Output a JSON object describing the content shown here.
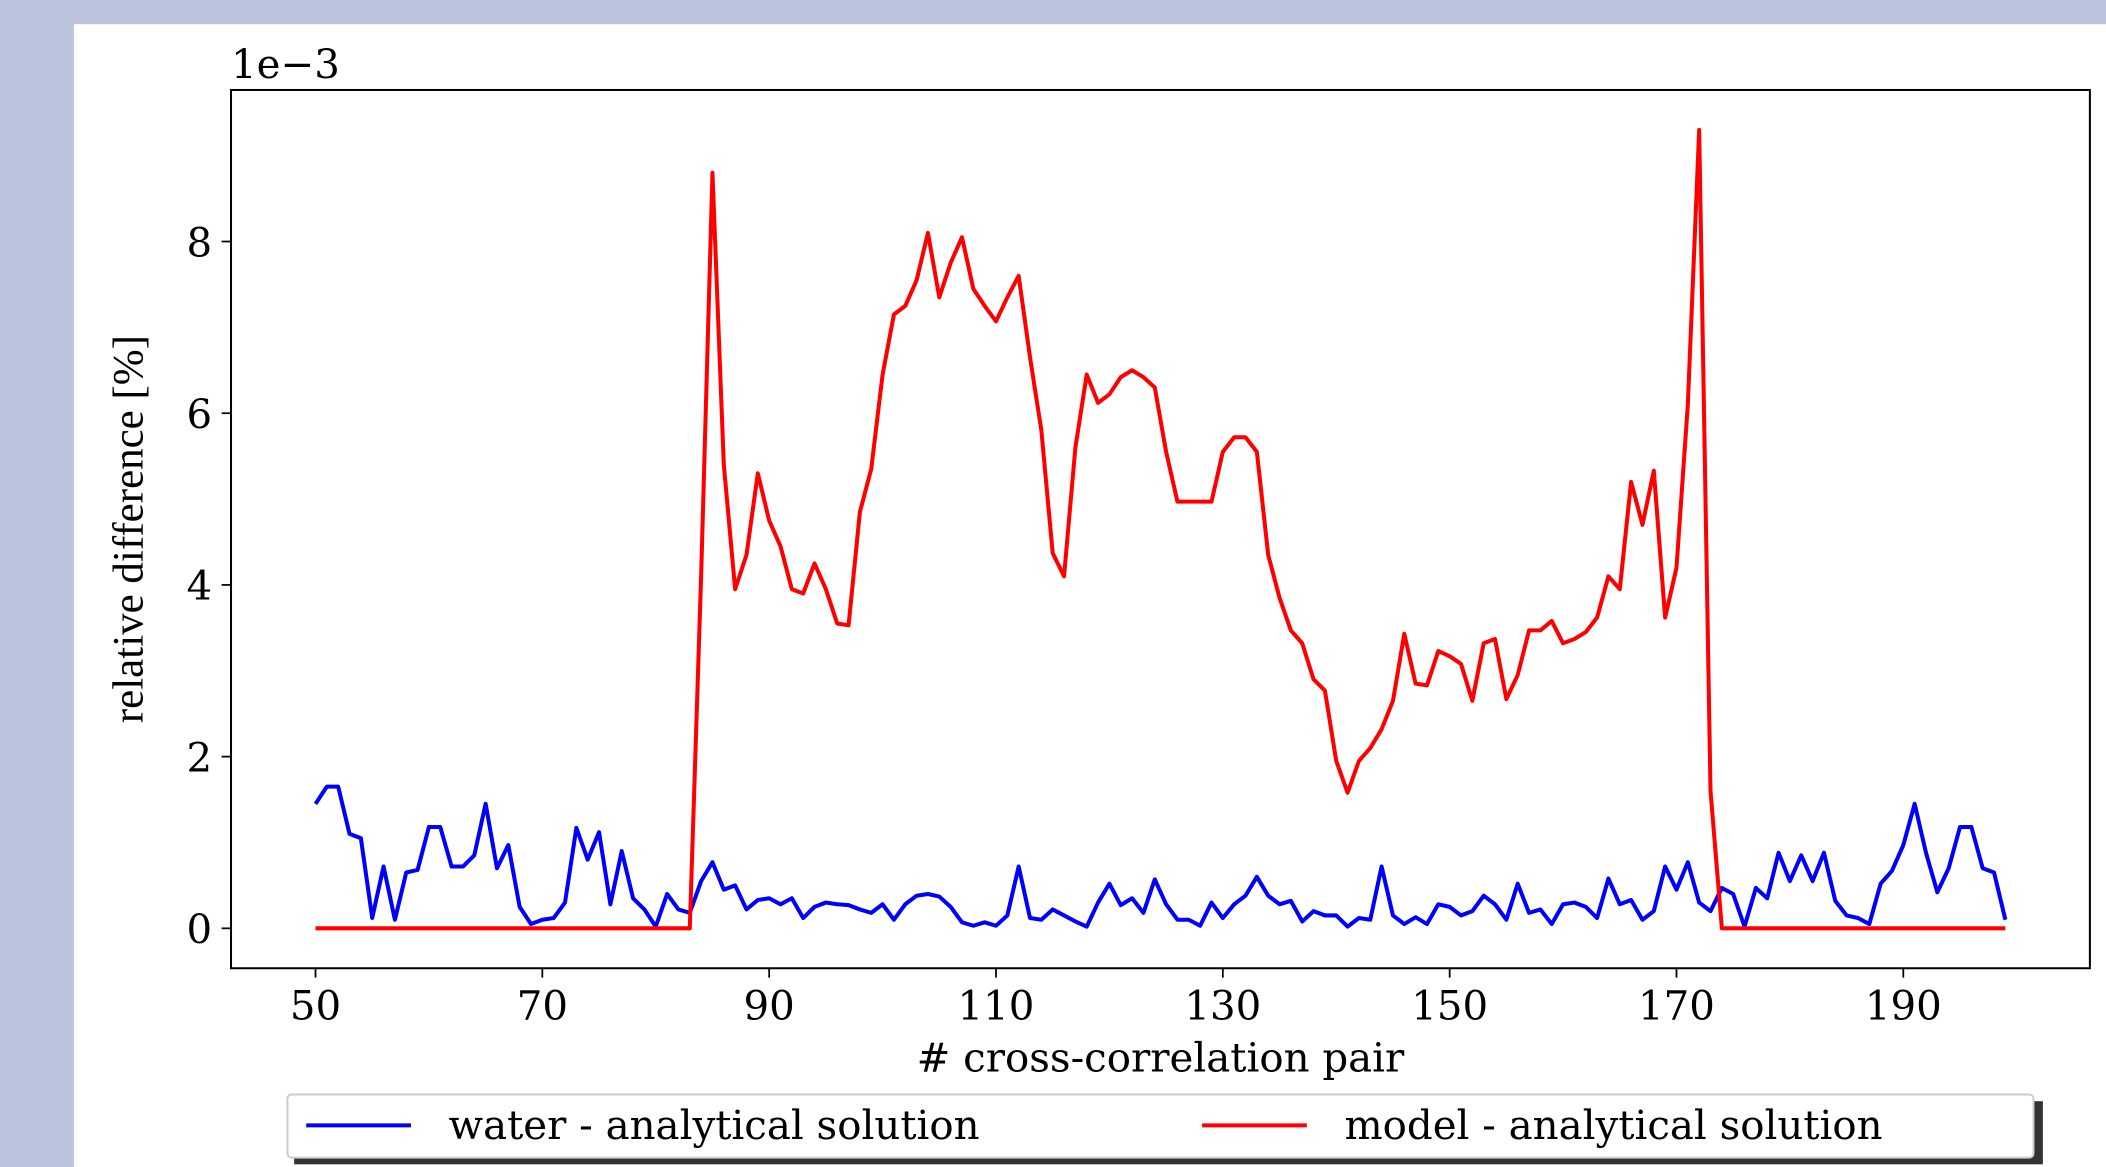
{
  "chart_data": {
    "type": "line",
    "offset_text": "1e−3",
    "xlabel": "# cross-correlation pair",
    "ylabel": "relative difference [%]",
    "x": [
      50,
      51,
      52,
      53,
      54,
      55,
      56,
      57,
      58,
      59,
      60,
      61,
      62,
      63,
      64,
      65,
      66,
      67,
      68,
      69,
      70,
      71,
      72,
      73,
      74,
      75,
      76,
      77,
      78,
      79,
      80,
      81,
      82,
      83,
      84,
      85,
      86,
      87,
      88,
      89,
      90,
      91,
      92,
      93,
      94,
      95,
      96,
      97,
      98,
      99,
      100,
      101,
      102,
      103,
      104,
      105,
      106,
      107,
      108,
      109,
      110,
      111,
      112,
      113,
      114,
      115,
      116,
      117,
      118,
      119,
      120,
      121,
      122,
      123,
      124,
      125,
      126,
      127,
      128,
      129,
      130,
      131,
      132,
      133,
      134,
      135,
      136,
      137,
      138,
      139,
      140,
      141,
      142,
      143,
      144,
      145,
      146,
      147,
      148,
      149,
      150,
      151,
      152,
      153,
      154,
      155,
      156,
      157,
      158,
      159,
      160,
      161,
      162,
      163,
      164,
      165,
      166,
      167,
      168,
      169,
      170,
      171,
      172,
      173,
      174,
      175,
      176,
      177,
      178,
      179,
      180,
      181,
      182,
      183,
      184,
      185,
      186,
      187,
      188,
      189,
      190,
      191,
      192,
      193,
      194,
      195,
      196,
      197,
      198,
      199
    ],
    "series": [
      {
        "name": "water - analytical solution",
        "color": "#0000ff",
        "values": [
          1.45,
          1.65,
          1.65,
          1.1,
          1.05,
          0.12,
          0.72,
          0.1,
          0.65,
          0.68,
          1.18,
          1.18,
          0.72,
          0.72,
          0.85,
          1.45,
          0.7,
          0.97,
          0.25,
          0.05,
          0.1,
          0.12,
          0.3,
          1.17,
          0.8,
          1.12,
          0.28,
          0.9,
          0.35,
          0.22,
          0.02,
          0.4,
          0.22,
          0.18,
          0.55,
          0.77,
          0.45,
          0.5,
          0.22,
          0.33,
          0.35,
          0.28,
          0.35,
          0.12,
          0.25,
          0.3,
          0.28,
          0.27,
          0.22,
          0.18,
          0.28,
          0.1,
          0.28,
          0.38,
          0.4,
          0.37,
          0.25,
          0.07,
          0.03,
          0.07,
          0.03,
          0.15,
          0.72,
          0.12,
          0.1,
          0.22,
          0.15,
          0.08,
          0.02,
          0.3,
          0.52,
          0.27,
          0.35,
          0.18,
          0.57,
          0.28,
          0.1,
          0.1,
          0.03,
          0.3,
          0.12,
          0.28,
          0.38,
          0.6,
          0.38,
          0.28,
          0.32,
          0.08,
          0.2,
          0.15,
          0.15,
          0.02,
          0.12,
          0.1,
          0.72,
          0.15,
          0.05,
          0.13,
          0.05,
          0.28,
          0.25,
          0.15,
          0.2,
          0.38,
          0.28,
          0.1,
          0.52,
          0.18,
          0.22,
          0.05,
          0.28,
          0.3,
          0.25,
          0.12,
          0.58,
          0.28,
          0.33,
          0.1,
          0.2,
          0.72,
          0.45,
          0.77,
          0.3,
          0.2,
          0.47,
          0.4,
          0.02,
          0.47,
          0.35,
          0.88,
          0.55,
          0.85,
          0.55,
          0.88,
          0.32,
          0.15,
          0.12,
          0.05,
          0.52,
          0.67,
          0.97,
          1.45,
          0.88,
          0.42,
          0.7,
          1.18,
          1.18,
          0.7,
          0.65,
          0.1
        ]
      },
      {
        "name": "model - analytical solution",
        "color": "#ff0000",
        "values": [
          0,
          0,
          0,
          0,
          0,
          0,
          0,
          0,
          0,
          0,
          0,
          0,
          0,
          0,
          0,
          0,
          0,
          0,
          0,
          0,
          0,
          0,
          0,
          0,
          0,
          0,
          0,
          0,
          0,
          0,
          0,
          0,
          0,
          0,
          4.1,
          8.8,
          5.4,
          3.95,
          4.35,
          5.3,
          4.75,
          4.45,
          3.95,
          3.9,
          4.25,
          3.95,
          3.55,
          3.53,
          4.85,
          5.35,
          6.45,
          7.15,
          7.25,
          7.55,
          8.1,
          7.35,
          7.75,
          8.05,
          7.45,
          7.25,
          7.07,
          7.35,
          7.6,
          6.65,
          5.8,
          4.37,
          4.1,
          5.6,
          6.45,
          6.12,
          6.22,
          6.42,
          6.5,
          6.42,
          6.3,
          5.55,
          4.97,
          4.97,
          4.97,
          4.97,
          5.55,
          5.72,
          5.72,
          5.55,
          4.35,
          3.85,
          3.47,
          3.32,
          2.9,
          2.77,
          1.95,
          1.58,
          1.95,
          2.1,
          2.32,
          2.65,
          3.43,
          2.85,
          2.83,
          3.23,
          3.17,
          3.08,
          2.65,
          3.32,
          3.37,
          2.67,
          2.95,
          3.47,
          3.47,
          3.58,
          3.32,
          3.37,
          3.45,
          3.62,
          4.1,
          3.95,
          5.2,
          4.7,
          5.33,
          3.62,
          4.2,
          6.1,
          9.3,
          1.6,
          0,
          0,
          0,
          0,
          0,
          0,
          0,
          0,
          0,
          0,
          0,
          0,
          0,
          0,
          0,
          0,
          0,
          0,
          0,
          0,
          0,
          0,
          0,
          0,
          0,
          0
        ]
      }
    ],
    "xlim": [
      42.55,
      206.45
    ],
    "ylim": [
      -0.465,
      9.765
    ],
    "xticks": [
      50,
      70,
      90,
      110,
      130,
      150,
      170,
      190
    ],
    "yticks": [
      0,
      2,
      4,
      6,
      8
    ],
    "legend": "lower center"
  }
}
